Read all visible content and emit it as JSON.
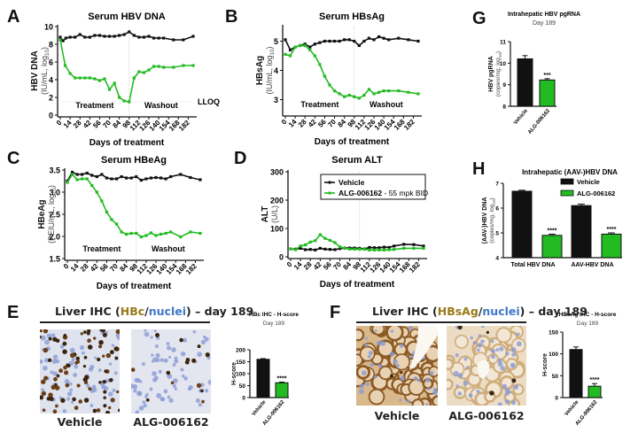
{
  "panels": {
    "A": {
      "letter": "A"
    },
    "B": {
      "letter": "B"
    },
    "C": {
      "letter": "C"
    },
    "D": {
      "letter": "D"
    },
    "E": {
      "letter": "E",
      "ihc_title_prefix": "Liver IHC (",
      "ihc_marker": "HBc",
      "ihc_sep": "/",
      "ihc_nuclei": "nuclei",
      "ihc_title_suffix": ") – day 189",
      "img_labels": [
        "Vehicle",
        "ALG-006162"
      ]
    },
    "F": {
      "letter": "F",
      "ihc_title_prefix": "Liver IHC (",
      "ihc_marker": "HBsAg",
      "ihc_sep": "/",
      "ihc_nuclei": "nuclei",
      "ihc_title_suffix": ") – day 189",
      "img_labels": [
        "Vehicle",
        "ALG-006162"
      ]
    },
    "G": {
      "letter": "G"
    },
    "H": {
      "letter": "H"
    }
  },
  "colors": {
    "vehicle": "#111111",
    "treated": "#22bb22",
    "ihc_brown": "#9a7a1a",
    "ihc_blue": "#3f78c8"
  },
  "chart_data": [
    {
      "id": "A",
      "type": "line",
      "title": "Serum HBV DNA",
      "xlabel": "Days of treatment",
      "ylabel": "HBV DNA",
      "ylabel2": "(IU/mL, log10)",
      "ylim": [
        0,
        10
      ],
      "yticks": [
        0,
        2,
        4,
        6,
        8,
        10
      ],
      "xticks": [
        0,
        14,
        28,
        42,
        56,
        70,
        84,
        98,
        112,
        126,
        140,
        154,
        168,
        182
      ],
      "xlim": [
        0,
        189
      ],
      "phase_divider": 98,
      "phase_labels": [
        "Treatment",
        "Washout"
      ],
      "annotation": "LLOQ",
      "lloq": 1.5,
      "series": [
        {
          "name": "Vehicle",
          "x": [
            0,
            4,
            8,
            14,
            21,
            28,
            35,
            42,
            49,
            56,
            63,
            70,
            77,
            84,
            91,
            98,
            105,
            112,
            119,
            126,
            133,
            140,
            147,
            161,
            175,
            189
          ],
          "values": [
            8.8,
            8.4,
            8.7,
            8.8,
            8.8,
            9.1,
            8.8,
            8.8,
            9.0,
            9.0,
            8.9,
            8.9,
            8.9,
            9.0,
            9.1,
            9.4,
            9.0,
            8.8,
            8.8,
            8.9,
            8.7,
            8.7,
            8.7,
            8.5,
            8.5,
            8.9
          ]
        },
        {
          "name": "ALG-006162",
          "x": [
            0,
            7,
            14,
            21,
            28,
            35,
            42,
            49,
            56,
            63,
            70,
            77,
            84,
            91,
            98,
            105,
            112,
            119,
            126,
            133,
            140,
            147,
            161,
            175,
            189
          ],
          "values": [
            8.5,
            5.6,
            4.7,
            4.2,
            4.2,
            4.2,
            4.2,
            4.1,
            3.9,
            4.1,
            2.9,
            3.6,
            2.0,
            1.6,
            1.5,
            4.2,
            4.9,
            4.8,
            5.1,
            5.5,
            5.5,
            5.4,
            5.4,
            5.6,
            5.6
          ]
        }
      ]
    },
    {
      "id": "B",
      "type": "line",
      "title": "Serum HBsAg",
      "xlabel": "Days of treatment",
      "ylabel": "HBsAg",
      "ylabel2": "(IU/mL, log10)",
      "ylim": [
        2.5,
        5.5
      ],
      "yticks": [
        3,
        4,
        5
      ],
      "xticks": [
        0,
        14,
        28,
        42,
        56,
        70,
        84,
        98,
        112,
        126,
        140,
        154,
        168,
        182
      ],
      "xlim": [
        0,
        189
      ],
      "phase_divider": 98,
      "phase_labels": [
        "Treatment",
        "Washout"
      ],
      "series": [
        {
          "name": "Vehicle",
          "x": [
            0,
            7,
            14,
            21,
            28,
            35,
            42,
            49,
            56,
            63,
            70,
            77,
            84,
            91,
            98,
            105,
            112,
            119,
            126,
            133,
            140,
            147,
            161,
            175,
            189
          ],
          "values": [
            5.05,
            4.7,
            4.8,
            4.85,
            4.9,
            4.8,
            4.9,
            4.95,
            5.0,
            5.0,
            5.0,
            5.0,
            5.05,
            5.05,
            5.0,
            4.85,
            5.0,
            5.1,
            5.05,
            5.15,
            5.1,
            5.05,
            5.1,
            5.05,
            5.0
          ]
        },
        {
          "name": "ALG-006162",
          "x": [
            0,
            7,
            14,
            21,
            28,
            35,
            42,
            49,
            56,
            63,
            70,
            77,
            84,
            91,
            98,
            105,
            112,
            119,
            126,
            133,
            140,
            147,
            161,
            175,
            189
          ],
          "values": [
            4.55,
            4.5,
            4.8,
            4.85,
            4.85,
            4.7,
            4.5,
            4.2,
            3.8,
            3.5,
            3.3,
            3.2,
            3.1,
            3.15,
            3.1,
            3.05,
            3.15,
            3.35,
            3.2,
            3.25,
            3.3,
            3.3,
            3.3,
            3.25,
            3.2
          ]
        }
      ]
    },
    {
      "id": "C",
      "type": "line",
      "title": "Serum HBeAg",
      "xlabel": "Days of treatment",
      "ylabel": "HBeAg",
      "ylabel2": "(PEIU/mL, log10)",
      "ylim": [
        1.5,
        3.5
      ],
      "yticks": [
        1.5,
        2.0,
        2.5,
        3.0,
        3.5
      ],
      "xticks": [
        0,
        14,
        28,
        42,
        56,
        70,
        84,
        98,
        112,
        126,
        140,
        154,
        168,
        182
      ],
      "xlim": [
        0,
        189
      ],
      "phase_divider": 98,
      "phase_labels": [
        "Treatment",
        "Washout"
      ],
      "series": [
        {
          "name": "Vehicle",
          "x": [
            0,
            7,
            14,
            21,
            28,
            35,
            42,
            49,
            56,
            63,
            70,
            77,
            84,
            91,
            98,
            105,
            112,
            119,
            126,
            133,
            140,
            147,
            161,
            175,
            189
          ],
          "values": [
            3.25,
            3.45,
            3.4,
            3.4,
            3.43,
            3.38,
            3.35,
            3.4,
            3.32,
            3.3,
            3.3,
            3.35,
            3.32,
            3.32,
            3.35,
            3.27,
            3.3,
            3.32,
            3.33,
            3.32,
            3.3,
            3.35,
            3.4,
            3.33,
            3.28
          ]
        },
        {
          "name": "ALG-006162",
          "x": [
            0,
            7,
            14,
            21,
            28,
            35,
            42,
            49,
            56,
            63,
            70,
            77,
            84,
            91,
            98,
            105,
            112,
            119,
            126,
            133,
            140,
            147,
            161,
            175,
            189
          ],
          "values": [
            3.22,
            3.4,
            3.28,
            3.3,
            3.3,
            3.15,
            3.0,
            2.8,
            2.55,
            2.38,
            2.28,
            2.1,
            2.05,
            2.07,
            2.07,
            1.99,
            2.02,
            2.08,
            2.02,
            2.05,
            2.07,
            2.1,
            1.99,
            2.1,
            2.07
          ]
        }
      ]
    },
    {
      "id": "D",
      "type": "line",
      "title": "Serum ALT",
      "xlabel": "Days of treatment",
      "ylabel": "ALT",
      "ylabel2": "(U/L)",
      "ylim": [
        0,
        300
      ],
      "yticks": [
        0,
        100,
        200,
        300
      ],
      "xticks": [
        0,
        14,
        28,
        42,
        56,
        70,
        84,
        98,
        112,
        126,
        140,
        154,
        168,
        182
      ],
      "xlim": [
        0,
        189
      ],
      "phase_divider": 98,
      "legend": {
        "position": "top-right",
        "entries": [
          {
            "bold": "Vehicle",
            "rest": ""
          },
          {
            "bold": "ALG-006162",
            "rest": " - 55 mpk BID"
          }
        ]
      },
      "series": [
        {
          "name": "Vehicle",
          "x": [
            0,
            7,
            14,
            21,
            28,
            35,
            42,
            49,
            56,
            63,
            70,
            77,
            84,
            91,
            98,
            105,
            112,
            119,
            126,
            133,
            140,
            147,
            161,
            175,
            189
          ],
          "values": [
            28,
            27,
            30,
            25,
            26,
            24,
            30,
            27,
            26,
            25,
            29,
            31,
            31,
            31,
            30,
            28,
            33,
            32,
            32,
            34,
            33,
            38,
            44,
            43,
            38
          ]
        },
        {
          "name": "ALG-006162",
          "x": [
            0,
            7,
            14,
            21,
            28,
            35,
            42,
            49,
            56,
            63,
            70,
            77,
            84,
            91,
            98,
            105,
            112,
            119,
            126,
            133,
            140,
            147,
            161,
            175,
            189
          ],
          "values": [
            28,
            25,
            38,
            42,
            52,
            57,
            78,
            65,
            58,
            50,
            35,
            30,
            27,
            27,
            27,
            27,
            24,
            24,
            24,
            24,
            25,
            26,
            30,
            30,
            30
          ]
        }
      ]
    },
    {
      "id": "G",
      "type": "bar",
      "title": "Intrahepatic HBV pgRNA",
      "subtitle": "Day 189",
      "ylabel": "HBV pgRNA",
      "ylabel2": "(copies/mg, log10)",
      "ylim": [
        8,
        11
      ],
      "yticks": [
        8,
        9,
        10,
        11
      ],
      "categories": [
        "Vehicle",
        "ALG-006162"
      ],
      "values": [
        10.2,
        9.22
      ],
      "errors": [
        0.15,
        0.06
      ],
      "significance": [
        "",
        "***"
      ]
    },
    {
      "id": "H",
      "type": "bar",
      "title": "Intrahepatic (AAV-)HBV DNA",
      "ylabel": "(AAV-)HBV DNA",
      "ylabel2": "(copies/mg, log10)",
      "ylim": [
        4,
        7
      ],
      "yticks": [
        4,
        5,
        6,
        7
      ],
      "categories": [
        "Total HBV DNA",
        "AAV-HBV DNA"
      ],
      "legend": {
        "position": "top-right",
        "entries": [
          "Vehicle",
          "ALG-006162"
        ]
      },
      "series": [
        {
          "name": "Vehicle",
          "values": [
            6.68,
            6.1
          ],
          "errors": [
            0.04,
            0.06
          ]
        },
        {
          "name": "ALG-006162",
          "values": [
            4.9,
            4.95
          ],
          "errors": [
            0.05,
            0.05
          ],
          "significance": [
            "****",
            "****"
          ]
        }
      ]
    },
    {
      "id": "E-bar",
      "type": "bar",
      "title": "HBc IHC -  H-score",
      "subtitle": "Day 189",
      "ylabel": "H-score",
      "ylim": [
        0,
        200
      ],
      "yticks": [
        0,
        50,
        100,
        150,
        200
      ],
      "categories": [
        "Vehicle",
        "ALG-006162"
      ],
      "values": [
        160,
        62
      ],
      "errors": [
        3,
        3
      ],
      "significance": [
        "",
        "****"
      ]
    },
    {
      "id": "F-bar",
      "type": "bar",
      "title": "HBsAg IHC -  H-score",
      "subtitle": "Day 189",
      "ylabel": "H-score",
      "ylim": [
        0,
        150
      ],
      "yticks": [
        0,
        50,
        100,
        150
      ],
      "categories": [
        "Vehicle",
        "ALG-006162"
      ],
      "values": [
        110,
        26
      ],
      "errors": [
        6,
        6
      ],
      "significance": [
        "",
        "****"
      ]
    }
  ]
}
